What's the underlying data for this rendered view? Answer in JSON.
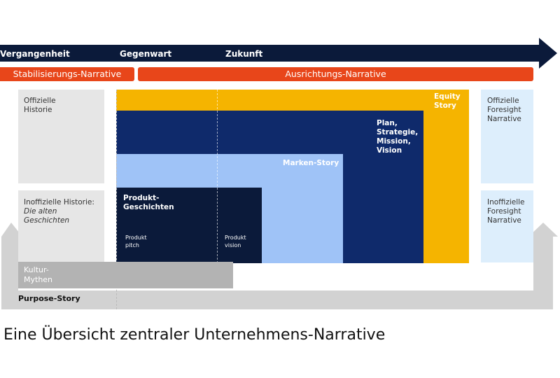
{
  "timeline": {
    "labels": [
      "Vergangenheit",
      "Gegenwart",
      "Zukunft"
    ]
  },
  "narratives": {
    "stabilizing": "Stabilisierungs-Narrative",
    "orientation": "Ausrichtungs-Narrative"
  },
  "left": {
    "official": "Offizielle Historie",
    "unofficial": "Inoffizielle Historie:",
    "unofficial_sub": "Die alten Geschichten"
  },
  "center": {
    "equity": "Equity Story",
    "plan": "Plan, Strategie, Mission, Vision",
    "brand": "Marken-Story",
    "product": "Produkt-Geschichten",
    "pitch": "Produkt pitch",
    "vision": "Produkt vision"
  },
  "right": {
    "official": "Offizielle Foresight Narrative",
    "unofficial": "Inoffizielle Foresight Narrative"
  },
  "bottom": {
    "culture": "Kultur-Mythen",
    "purpose": "Purpose-Story"
  },
  "caption": "Eine Übersicht zentraler Unternehmens-Narrative"
}
